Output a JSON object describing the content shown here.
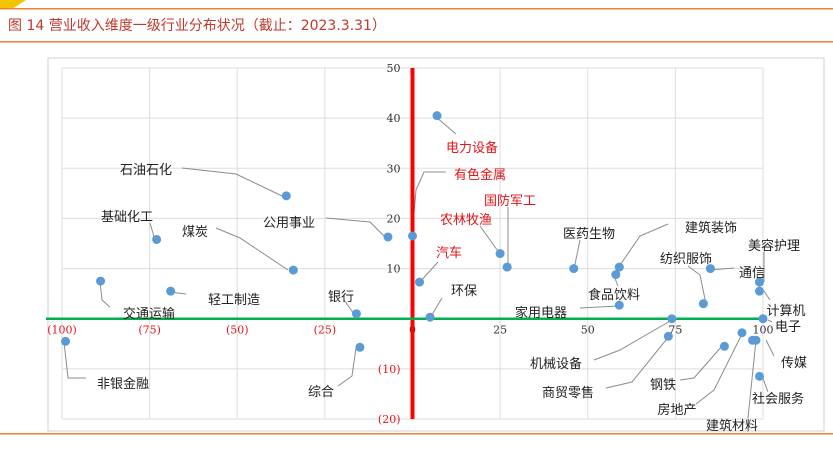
{
  "title": "图 14 营业收入维度一级行业分布状况（截止：2023.3.31）",
  "colors": {
    "accent": "#e8833a",
    "title": "#c0392b",
    "point": "#5b9bd5",
    "vline": "#ff0000",
    "hline": "#00b050",
    "neg_tick": "#e0161b",
    "highlight_label": "#e0161b",
    "label": "#222222",
    "leader": "#8c8c8c"
  },
  "chart_data": {
    "type": "scatter",
    "xlim": [
      -100,
      100
    ],
    "ylim": [
      -20,
      50
    ],
    "x_ticks": [
      {
        "v": -100,
        "t": "(100)"
      },
      {
        "v": -75,
        "t": "(75)"
      },
      {
        "v": -50,
        "t": "(50)"
      },
      {
        "v": -25,
        "t": "(25)"
      },
      {
        "v": 0,
        "t": "0"
      },
      {
        "v": 25,
        "t": "25"
      },
      {
        "v": 50,
        "t": "50"
      },
      {
        "v": 75,
        "t": "75"
      },
      {
        "v": 100,
        "t": "100"
      }
    ],
    "y_ticks": [
      {
        "v": 50,
        "t": "50"
      },
      {
        "v": 40,
        "t": "40"
      },
      {
        "v": 30,
        "t": "30"
      },
      {
        "v": 20,
        "t": "20"
      },
      {
        "v": 10,
        "t": "10"
      },
      {
        "v": 0,
        "t": "0"
      },
      {
        "v": -10,
        "t": "(10)"
      },
      {
        "v": -20,
        "t": "(20)"
      }
    ],
    "grid": true,
    "points": [
      {
        "name": "电力设备",
        "x": 7,
        "y": 40.5,
        "highlight": true
      },
      {
        "name": "有色金属",
        "x": 0,
        "y": 16.5,
        "highlight": true
      },
      {
        "name": "国防军工",
        "x": 27,
        "y": 10.3,
        "highlight": true
      },
      {
        "name": "农林牧渔",
        "x": 25,
        "y": 13,
        "highlight": true
      },
      {
        "name": "汽车",
        "x": 2,
        "y": 7.3,
        "highlight": true
      },
      {
        "name": "石油石化",
        "x": -36,
        "y": 24.5,
        "highlight": false
      },
      {
        "name": "基础化工",
        "x": -73,
        "y": 15.8,
        "highlight": false
      },
      {
        "name": "煤炭",
        "x": -34,
        "y": 9.7,
        "highlight": false
      },
      {
        "name": "公用事业",
        "x": -7,
        "y": 16.3,
        "highlight": false
      },
      {
        "name": "交通运输",
        "x": -89,
        "y": 7.5,
        "highlight": false
      },
      {
        "name": "轻工制造",
        "x": -69,
        "y": 5.5,
        "highlight": false
      },
      {
        "name": "银行",
        "x": -16,
        "y": 1,
        "highlight": false
      },
      {
        "name": "环保",
        "x": 5,
        "y": 0.3,
        "highlight": false
      },
      {
        "name": "非银金融",
        "x": -99,
        "y": -4.5,
        "highlight": false
      },
      {
        "name": "综合",
        "x": -15,
        "y": -5.7,
        "highlight": false
      },
      {
        "name": "医药生物",
        "x": 46,
        "y": 10,
        "highlight": false
      },
      {
        "name": "建筑装饰",
        "x": 59,
        "y": 10.3,
        "highlight": false
      },
      {
        "name": "食品饮料",
        "x": 58,
        "y": 8.8,
        "highlight": false
      },
      {
        "name": "纺织服饰",
        "x": 83,
        "y": 3,
        "highlight": false
      },
      {
        "name": "通信",
        "x": 85,
        "y": 10,
        "highlight": false
      },
      {
        "name": "美容护理",
        "x": 99,
        "y": 7.3,
        "highlight": false
      },
      {
        "name": "计算机",
        "x": 99,
        "y": 5.5,
        "highlight": false
      },
      {
        "name": "家用电器",
        "x": 59,
        "y": 2.7,
        "highlight": false
      },
      {
        "name": "电子",
        "x": 100,
        "y": 0,
        "highlight": false
      },
      {
        "name": "机械设备",
        "x": 74,
        "y": 0,
        "highlight": false
      },
      {
        "name": "商贸零售",
        "x": 73,
        "y": -3.5,
        "highlight": false
      },
      {
        "name": "钢铁",
        "x": 94,
        "y": -2.8,
        "highlight": false
      },
      {
        "name": "房地产",
        "x": 89,
        "y": -5.5,
        "highlight": false
      },
      {
        "name": "传媒",
        "x": 97,
        "y": -4.3,
        "highlight": false
      },
      {
        "name": "建筑材料",
        "x": 98,
        "y": -4.3,
        "highlight": false
      },
      {
        "name": "社会服务",
        "x": 99,
        "y": -11.5,
        "highlight": false
      }
    ]
  }
}
